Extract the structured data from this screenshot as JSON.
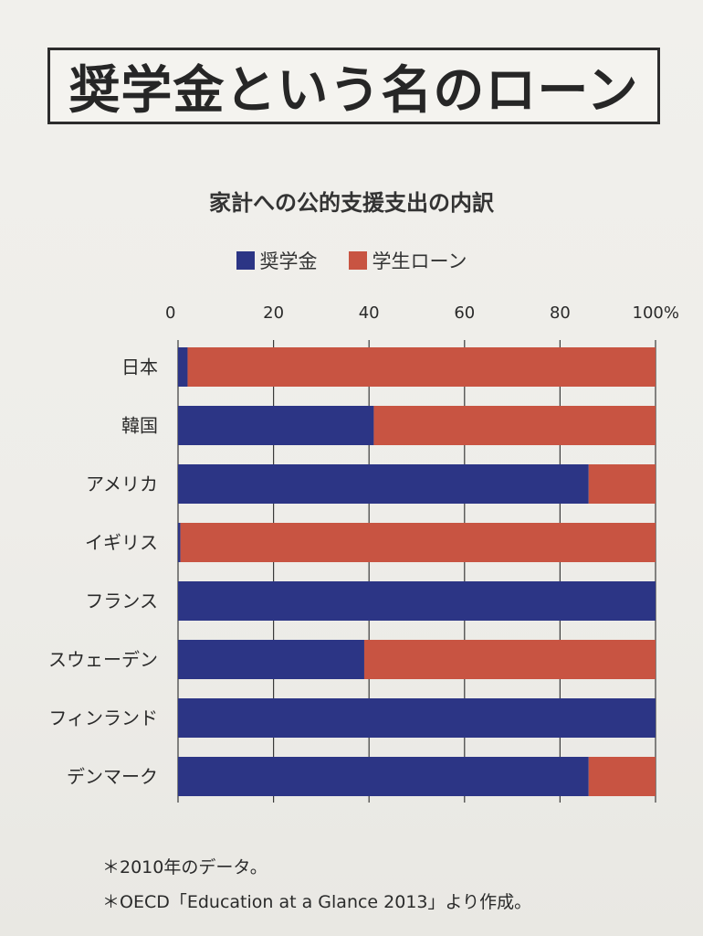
{
  "title": "奨学金という名のローン",
  "footnotes": [
    "＊2010年のデータ。",
    "＊OECD「Education at a Glance 2013」より作成。"
  ],
  "colors": {
    "scholarship": "#2c3585",
    "loan": "#c85442"
  },
  "chart_data": {
    "type": "bar",
    "orientation": "horizontal",
    "stacked": true,
    "title": "家計への公的支援支出の内訳",
    "categories": [
      "日本",
      "韓国",
      "アメリカ",
      "イギリス",
      "フランス",
      "スウェーデン",
      "フィンランド",
      "デンマーク"
    ],
    "series": [
      {
        "name": "奨学金",
        "values": [
          2,
          41,
          86,
          0.5,
          100,
          39,
          100,
          86
        ]
      },
      {
        "name": "学生ローン",
        "values": [
          98,
          59,
          14,
          99.5,
          0,
          61,
          0,
          14
        ]
      }
    ],
    "xlim": [
      0,
      100
    ],
    "xticks": [
      "0",
      "20",
      "40",
      "60",
      "80",
      "100%"
    ],
    "xtick_values": [
      0,
      20,
      40,
      60,
      80,
      100
    ],
    "legend_position": "top",
    "grid": true
  }
}
